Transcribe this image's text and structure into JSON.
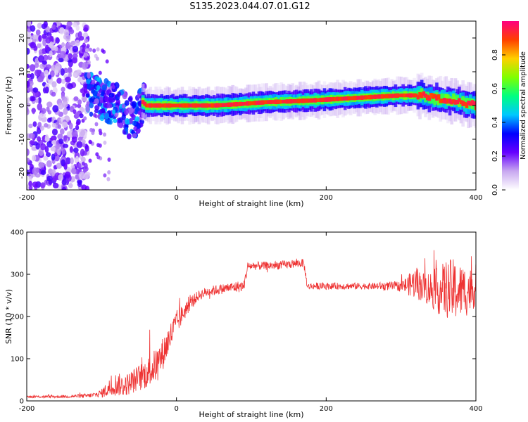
{
  "title": "S135.2023.044.07.01.G12",
  "colorbar": {
    "label": "Normalized spectral amplitude",
    "ticks": [
      "0.0",
      "0.2",
      "0.4",
      "0.6",
      "0.8"
    ],
    "tick_values": [
      0.0,
      0.2,
      0.4,
      0.6,
      0.8
    ],
    "range": [
      0,
      1
    ],
    "colors": [
      "#ffffff",
      "#c8a8f0",
      "#6600ff",
      "#0000ff",
      "#00c8ff",
      "#00ff80",
      "#80ff00",
      "#ffd000",
      "#ff4000",
      "#ff0080"
    ]
  },
  "chart_data": [
    {
      "type": "heatmap",
      "xlabel": "Height of straight line (km)",
      "ylabel": "Frequency (Hz)",
      "xlim": [
        -200,
        400
      ],
      "ylim": [
        -25,
        25
      ],
      "x_ticks": [
        -200,
        0,
        200,
        400
      ],
      "y_ticks": [
        -20,
        -10,
        0,
        10,
        20
      ],
      "ridge": {
        "x": [
          -120,
          -100,
          -80,
          -65,
          -55,
          -45,
          -40,
          -30,
          0,
          50,
          90,
          120,
          150,
          180,
          220,
          260,
          300,
          330,
          350,
          370,
          390,
          400
        ],
        "frequency": [
          4,
          2,
          0,
          -3,
          -4,
          1,
          0,
          0,
          0,
          0,
          0.5,
          1,
          1.2,
          1.5,
          2,
          2.5,
          3,
          3,
          2,
          1.5,
          0.5,
          0
        ]
      }
    },
    {
      "type": "line",
      "xlabel": "Height of straight line (km)",
      "ylabel": "SNR (10 * v/v)",
      "xlim": [
        -200,
        400
      ],
      "ylim": [
        0,
        400
      ],
      "x_ticks": [
        -200,
        0,
        200,
        400
      ],
      "y_ticks": [
        0,
        100,
        200,
        300,
        400
      ],
      "color": "#ee3333",
      "series": [
        {
          "x": [
            -200,
            -180,
            -160,
            -140,
            -120,
            -110,
            -100,
            -90,
            -80,
            -70,
            -60,
            -50,
            -40,
            -30,
            -20,
            -10,
            0,
            10,
            20,
            30,
            40,
            50,
            60,
            70,
            80,
            90,
            95,
            100,
            120,
            140,
            160,
            170,
            175,
            180,
            200,
            220,
            240,
            260,
            280,
            300,
            310,
            320,
            330,
            340,
            350,
            360,
            370,
            380,
            390,
            400
          ],
          "values": [
            10,
            10,
            10,
            11,
            12,
            14,
            18,
            30,
            40,
            35,
            45,
            55,
            65,
            80,
            105,
            145,
            185,
            210,
            235,
            250,
            258,
            262,
            265,
            268,
            270,
            272,
            318,
            320,
            320,
            322,
            325,
            327,
            270,
            272,
            272,
            272,
            272,
            272,
            272,
            272,
            275,
            280,
            270,
            265,
            260,
            265,
            262,
            260,
            262,
            265
          ],
          "noise": [
            3,
            3,
            3,
            4,
            5,
            6,
            10,
            22,
            28,
            25,
            28,
            32,
            36,
            40,
            40,
            36,
            30,
            20,
            15,
            12,
            12,
            12,
            12,
            12,
            14,
            12,
            12,
            10,
            10,
            10,
            10,
            10,
            8,
            8,
            8,
            8,
            8,
            8,
            10,
            12,
            25,
            40,
            35,
            45,
            55,
            70,
            75,
            65,
            60,
            40
          ]
        }
      ]
    }
  ]
}
